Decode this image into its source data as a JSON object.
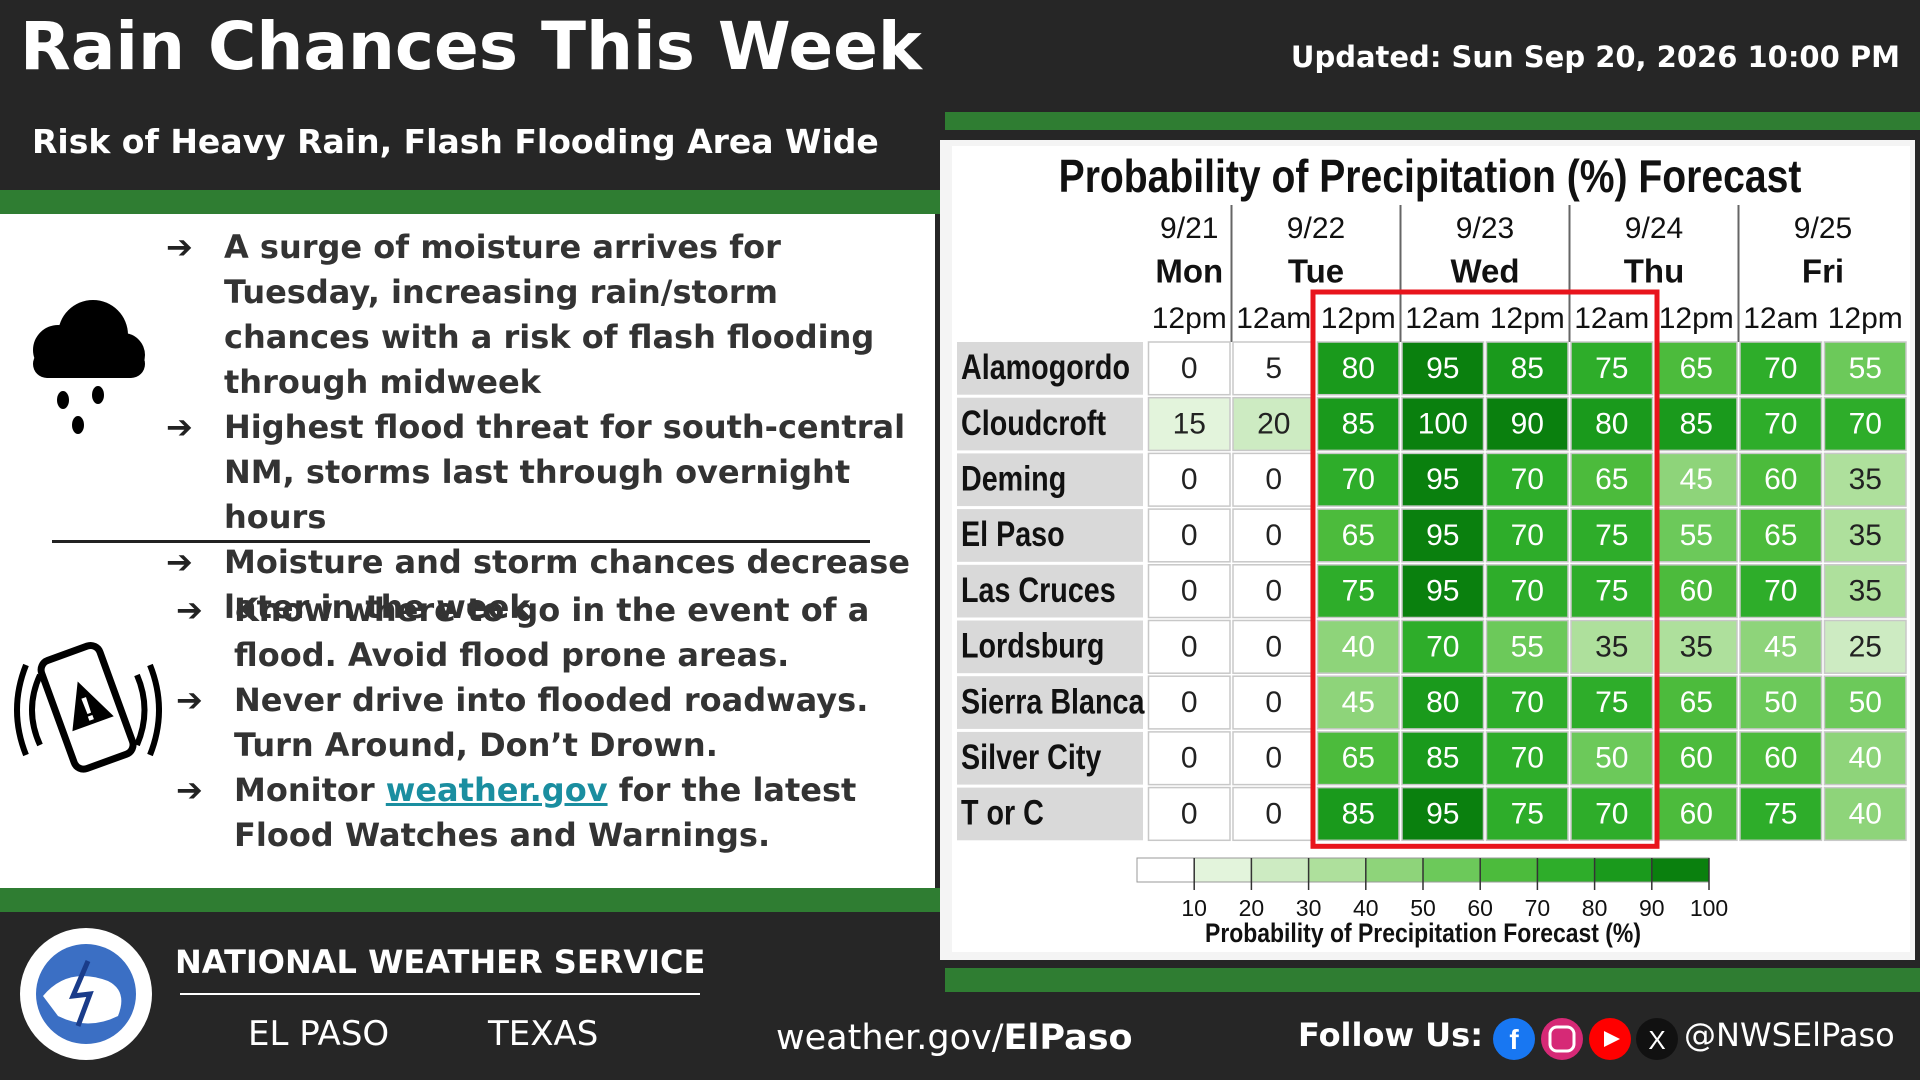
{
  "header": {
    "title": "Rain Chances This Week",
    "updated": "Updated: Sun Sep 20, 2026 10:00 PM",
    "subtitle": "Risk of Heavy Rain, Flash Flooding Area Wide"
  },
  "outlook": {
    "bullets": [
      "A surge of moisture arrives for Tuesday, increasing rain/storm chances with a risk of flash flooding through midweek",
      "Highest flood threat for south-central NM, storms last through overnight hours",
      "Moisture and storm chances decrease later in the week"
    ]
  },
  "safety": {
    "bullets": [
      "Know where to go in the event of a flood. Avoid flood prone areas.",
      "Never drive into flooded roadways. Turn Around, Don’t Drown."
    ],
    "monitor": {
      "before": "Monitor",
      "link": "weather.gov",
      "after": "for the latest Flood Watches and Warnings."
    }
  },
  "table": {
    "title": "Probability of Precipitation (%) Forecast",
    "dates": [
      "9/21",
      "9/22",
      "9/23",
      "9/24",
      "9/25"
    ],
    "days": [
      "Mon",
      "Tue",
      "Wed",
      "Thu",
      "Fri"
    ],
    "times": [
      "12pm",
      "12am",
      "12pm",
      "12am",
      "12pm",
      "12am",
      "12pm",
      "12am",
      "12pm"
    ],
    "rows": [
      {
        "name": "Alamogordo",
        "values": [
          0,
          5,
          80,
          95,
          85,
          75,
          65,
          70,
          55
        ]
      },
      {
        "name": "Cloudcroft",
        "values": [
          15,
          20,
          85,
          100,
          90,
          80,
          85,
          70,
          70
        ]
      },
      {
        "name": "Deming",
        "values": [
          0,
          0,
          70,
          95,
          70,
          65,
          45,
          60,
          35
        ]
      },
      {
        "name": "El Paso",
        "values": [
          0,
          0,
          65,
          95,
          70,
          75,
          55,
          65,
          35
        ]
      },
      {
        "name": "Las Cruces",
        "values": [
          0,
          0,
          75,
          95,
          70,
          75,
          60,
          70,
          35
        ]
      },
      {
        "name": "Lordsburg",
        "values": [
          0,
          0,
          40,
          70,
          55,
          35,
          35,
          45,
          25
        ]
      },
      {
        "name": "Sierra Blanca",
        "values": [
          0,
          0,
          45,
          80,
          70,
          75,
          65,
          50,
          50
        ]
      },
      {
        "name": "Silver City",
        "values": [
          0,
          0,
          65,
          85,
          70,
          50,
          60,
          60,
          40
        ]
      },
      {
        "name": "T or C",
        "values": [
          0,
          0,
          85,
          95,
          75,
          70,
          60,
          75,
          40
        ]
      }
    ],
    "legend": {
      "ticks": [
        10,
        20,
        30,
        40,
        50,
        60,
        70,
        80,
        90,
        100
      ],
      "title": "Probability of Precipitation Forecast (%)",
      "colors": [
        "#ffffff",
        "#e3f4dc",
        "#cdebc2",
        "#aee09c",
        "#8ed47a",
        "#6cc95a",
        "#4cbb3c",
        "#2ead2a",
        "#1a9a1c",
        "#0a800e"
      ]
    }
  },
  "footer": {
    "agency": "NATIONAL WEATHER SERVICE",
    "city": "EL PASO",
    "state": "TEXAS",
    "site": {
      "base": "weather.gov/",
      "office": "ElPaso"
    },
    "follow": "Follow Us:",
    "handle": "@NWSElPaso"
  }
}
